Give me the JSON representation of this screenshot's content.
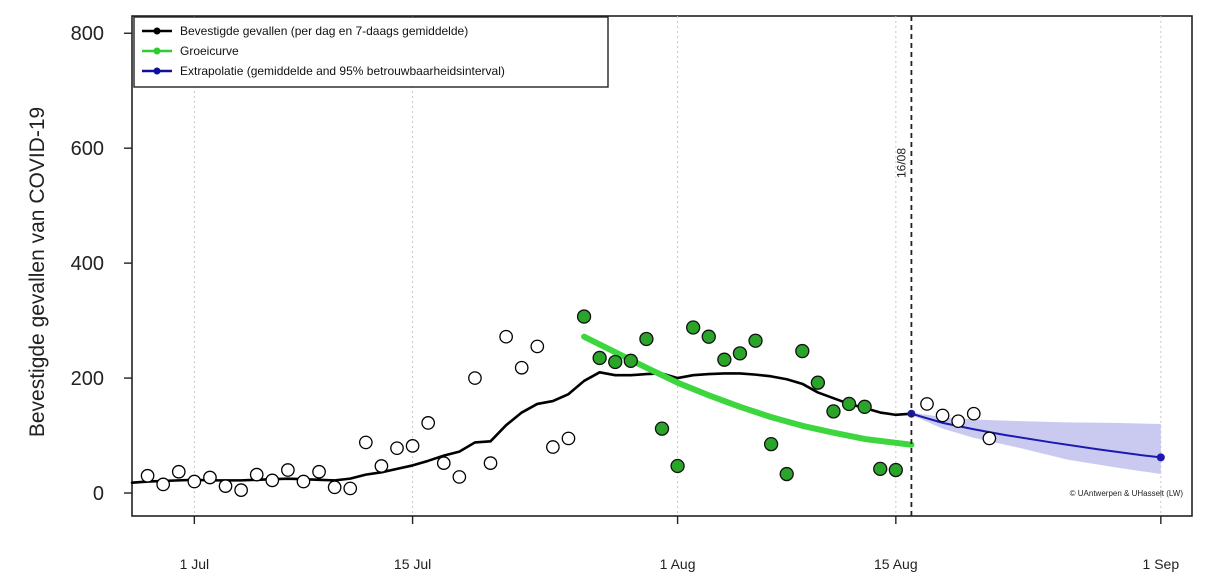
{
  "chart_data": {
    "type": "scatter",
    "ylabel": "Bevestigde gevallen van COVID-19",
    "xlabel": "",
    "ylim": [
      -40,
      830
    ],
    "yticks": [
      0,
      200,
      400,
      600,
      800
    ],
    "xlim": [
      "2020-06-27",
      "2020-09-03"
    ],
    "xticks": [
      {
        "date": "2020-07-01",
        "label": "1 Jul"
      },
      {
        "date": "2020-07-15",
        "label": "15 Jul"
      },
      {
        "date": "2020-08-01",
        "label": "1 Aug"
      },
      {
        "date": "2020-08-15",
        "label": "15 Aug"
      },
      {
        "date": "2020-09-01",
        "label": "1 Sep"
      }
    ],
    "grid": "vertical dotted",
    "cutoff": {
      "date": "2020-08-16",
      "label": "16/08"
    },
    "legend": {
      "position": "top-left",
      "entries": [
        {
          "label": "Bevestigde gevallen (per dag en 7-daags gemiddelde)",
          "color": "#000000"
        },
        {
          "label": "Groeicurve",
          "color": "#2ecc2e"
        },
        {
          "label": "Extrapolatie (gemiddelde and 95% betrouwbaarheidsinterval)",
          "color": "#1010a0"
        }
      ]
    },
    "credit": "© UAntwerpen & UHasselt (LW)",
    "colors": {
      "observed_open": "#000000",
      "growth_fill": "#2aa52a",
      "growth_curve": "#3ed63e",
      "extrapolation": "#1a1ab0",
      "band": "#c4c4f0"
    },
    "series": [
      {
        "name": "Bevestigde gevallen",
        "style": "open-circle",
        "points": [
          [
            "2020-06-28",
            30
          ],
          [
            "2020-06-29",
            15
          ],
          [
            "2020-06-30",
            37
          ],
          [
            "2020-07-01",
            20
          ],
          [
            "2020-07-02",
            27
          ],
          [
            "2020-07-03",
            12
          ],
          [
            "2020-07-04",
            5
          ],
          [
            "2020-07-05",
            32
          ],
          [
            "2020-07-06",
            22
          ],
          [
            "2020-07-07",
            40
          ],
          [
            "2020-07-08",
            20
          ],
          [
            "2020-07-09",
            37
          ],
          [
            "2020-07-10",
            10
          ],
          [
            "2020-07-11",
            8
          ],
          [
            "2020-07-12",
            88
          ],
          [
            "2020-07-13",
            47
          ],
          [
            "2020-07-14",
            78
          ],
          [
            "2020-07-15",
            82
          ],
          [
            "2020-07-16",
            122
          ],
          [
            "2020-07-17",
            52
          ],
          [
            "2020-07-18",
            28
          ],
          [
            "2020-07-19",
            200
          ],
          [
            "2020-07-20",
            52
          ],
          [
            "2020-07-21",
            272
          ],
          [
            "2020-07-22",
            218
          ],
          [
            "2020-07-23",
            255
          ],
          [
            "2020-07-24",
            80
          ],
          [
            "2020-07-25",
            95
          ],
          [
            "2020-08-17",
            155
          ],
          [
            "2020-08-18",
            135
          ],
          [
            "2020-08-19",
            125
          ],
          [
            "2020-08-20",
            138
          ],
          [
            "2020-08-21",
            95
          ]
        ]
      },
      {
        "name": "Groeicurve",
        "style": "filled-circle",
        "points": [
          [
            "2020-07-26",
            307
          ],
          [
            "2020-07-27",
            235
          ],
          [
            "2020-07-28",
            228
          ],
          [
            "2020-07-29",
            230
          ],
          [
            "2020-07-30",
            268
          ],
          [
            "2020-07-31",
            112
          ],
          [
            "2020-08-01",
            47
          ],
          [
            "2020-08-02",
            288
          ],
          [
            "2020-08-03",
            272
          ],
          [
            "2020-08-04",
            232
          ],
          [
            "2020-08-05",
            243
          ],
          [
            "2020-08-06",
            265
          ],
          [
            "2020-08-07",
            85
          ],
          [
            "2020-08-08",
            33
          ],
          [
            "2020-08-09",
            247
          ],
          [
            "2020-08-10",
            192
          ],
          [
            "2020-08-11",
            142
          ],
          [
            "2020-08-12",
            155
          ],
          [
            "2020-08-13",
            150
          ],
          [
            "2020-08-14",
            42
          ],
          [
            "2020-08-15",
            40
          ]
        ]
      },
      {
        "name": "7-daags gemiddelde",
        "style": "line",
        "points": [
          [
            "2020-06-27",
            18
          ],
          [
            "2020-06-28",
            20
          ],
          [
            "2020-06-29",
            21
          ],
          [
            "2020-06-30",
            22
          ],
          [
            "2020-07-01",
            23
          ],
          [
            "2020-07-02",
            22
          ],
          [
            "2020-07-03",
            22
          ],
          [
            "2020-07-04",
            22
          ],
          [
            "2020-07-05",
            23
          ],
          [
            "2020-07-06",
            24
          ],
          [
            "2020-07-07",
            25
          ],
          [
            "2020-07-08",
            24
          ],
          [
            "2020-07-09",
            23
          ],
          [
            "2020-07-10",
            22
          ],
          [
            "2020-07-11",
            25
          ],
          [
            "2020-07-12",
            32
          ],
          [
            "2020-07-13",
            36
          ],
          [
            "2020-07-14",
            42
          ],
          [
            "2020-07-15",
            48
          ],
          [
            "2020-07-16",
            56
          ],
          [
            "2020-07-17",
            65
          ],
          [
            "2020-07-18",
            72
          ],
          [
            "2020-07-19",
            88
          ],
          [
            "2020-07-20",
            90
          ],
          [
            "2020-07-21",
            118
          ],
          [
            "2020-07-22",
            140
          ],
          [
            "2020-07-23",
            155
          ],
          [
            "2020-07-24",
            160
          ],
          [
            "2020-07-25",
            172
          ],
          [
            "2020-07-26",
            195
          ],
          [
            "2020-07-27",
            210
          ],
          [
            "2020-07-28",
            205
          ],
          [
            "2020-07-29",
            205
          ],
          [
            "2020-07-30",
            207
          ],
          [
            "2020-07-31",
            208
          ],
          [
            "2020-08-01",
            200
          ],
          [
            "2020-08-02",
            205
          ],
          [
            "2020-08-03",
            207
          ],
          [
            "2020-08-04",
            208
          ],
          [
            "2020-08-05",
            208
          ],
          [
            "2020-08-06",
            206
          ],
          [
            "2020-08-07",
            203
          ],
          [
            "2020-08-08",
            198
          ],
          [
            "2020-08-09",
            190
          ],
          [
            "2020-08-10",
            175
          ],
          [
            "2020-08-11",
            165
          ],
          [
            "2020-08-12",
            155
          ],
          [
            "2020-08-13",
            148
          ],
          [
            "2020-08-14",
            140
          ],
          [
            "2020-08-15",
            136
          ],
          [
            "2020-08-16",
            138
          ]
        ]
      },
      {
        "name": "Groeicurve fit",
        "style": "curve",
        "points": [
          [
            "2020-07-26",
            272
          ],
          [
            "2020-07-28",
            245
          ],
          [
            "2020-07-30",
            218
          ],
          [
            "2020-08-01",
            192
          ],
          [
            "2020-08-03",
            170
          ],
          [
            "2020-08-05",
            150
          ],
          [
            "2020-08-07",
            132
          ],
          [
            "2020-08-09",
            117
          ],
          [
            "2020-08-11",
            105
          ],
          [
            "2020-08-13",
            94
          ],
          [
            "2020-08-16",
            84
          ]
        ]
      },
      {
        "name": "Extrapolatie",
        "style": "curve",
        "points": [
          [
            "2020-08-16",
            138
          ],
          [
            "2020-08-18",
            122
          ],
          [
            "2020-08-20",
            111
          ],
          [
            "2020-08-22",
            101
          ],
          [
            "2020-08-25",
            88
          ],
          [
            "2020-08-28",
            76
          ],
          [
            "2020-08-31",
            65
          ],
          [
            "2020-09-01",
            62
          ]
        ],
        "band": [
          [
            "2020-08-16",
            140,
            136
          ],
          [
            "2020-08-18",
            132,
            112
          ],
          [
            "2020-08-20",
            128,
            96
          ],
          [
            "2020-08-23",
            125,
            78
          ],
          [
            "2020-08-26",
            123,
            58
          ],
          [
            "2020-08-29",
            122,
            45
          ],
          [
            "2020-09-01",
            120,
            33
          ]
        ]
      }
    ]
  }
}
